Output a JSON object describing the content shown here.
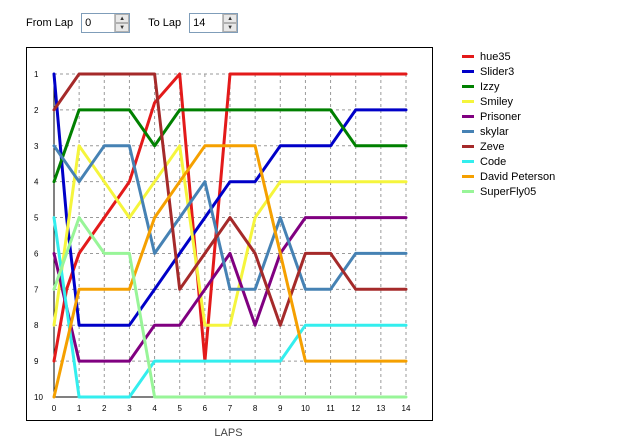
{
  "controls": {
    "from_label": "From Lap",
    "from_value": "0",
    "to_label": "To Lap",
    "to_value": "14"
  },
  "chart_data": {
    "type": "line",
    "xlabel": "LAPS",
    "ylabel": "",
    "x_ticks": [
      "0",
      "1",
      "2",
      "3",
      "4",
      "5",
      "6",
      "7",
      "8",
      "9",
      "10",
      "11",
      "12",
      "13",
      "14"
    ],
    "y_ticks": [
      "1",
      "2",
      "3",
      "4",
      "5",
      "6",
      "7",
      "8",
      "9",
      "10"
    ],
    "xlim": [
      0,
      14
    ],
    "ylim": [
      1,
      10
    ],
    "y_inverted": true,
    "grid": true,
    "legend_position": "right",
    "series": [
      {
        "name": "hue35",
        "color": "#e31a1a",
        "points": [
          [
            0,
            9
          ],
          [
            0.5,
            7
          ],
          [
            1,
            6
          ],
          [
            2,
            5
          ],
          [
            3,
            4
          ],
          [
            4,
            1.8
          ],
          [
            5,
            1
          ],
          [
            6,
            9
          ],
          [
            7,
            1
          ],
          [
            8,
            1
          ],
          [
            9,
            1
          ],
          [
            10,
            1
          ],
          [
            11,
            1
          ],
          [
            12,
            1
          ],
          [
            13,
            1
          ],
          [
            14,
            1
          ]
        ]
      },
      {
        "name": "Slider3",
        "color": "#0000c8",
        "points": [
          [
            0,
            1
          ],
          [
            0.5,
            5
          ],
          [
            1,
            8
          ],
          [
            2,
            8
          ],
          [
            3,
            8
          ],
          [
            4,
            7
          ],
          [
            5,
            6
          ],
          [
            6,
            5
          ],
          [
            7,
            4
          ],
          [
            8,
            4
          ],
          [
            9,
            3
          ],
          [
            10,
            3
          ],
          [
            11,
            3
          ],
          [
            12,
            2
          ],
          [
            13,
            2
          ],
          [
            14,
            2
          ]
        ]
      },
      {
        "name": "Izzy",
        "color": "#008000",
        "points": [
          [
            0,
            4
          ],
          [
            1,
            2
          ],
          [
            2,
            2
          ],
          [
            3,
            2
          ],
          [
            4,
            3
          ],
          [
            5,
            2
          ],
          [
            6,
            2
          ],
          [
            7,
            2
          ],
          [
            8,
            2
          ],
          [
            9,
            2
          ],
          [
            10,
            2
          ],
          [
            11,
            2
          ],
          [
            12,
            3
          ],
          [
            13,
            3
          ],
          [
            14,
            3
          ]
        ]
      },
      {
        "name": "Smiley",
        "color": "#f5f53c",
        "points": [
          [
            0,
            8
          ],
          [
            1,
            3
          ],
          [
            2,
            4
          ],
          [
            3,
            5
          ],
          [
            4,
            4
          ],
          [
            5,
            3
          ],
          [
            6,
            8
          ],
          [
            7,
            8
          ],
          [
            8,
            5
          ],
          [
            9,
            4
          ],
          [
            10,
            4
          ],
          [
            11,
            4
          ],
          [
            12,
            4
          ],
          [
            13,
            4
          ],
          [
            14,
            4
          ]
        ]
      },
      {
        "name": "Prisoner",
        "color": "#800080",
        "points": [
          [
            0,
            6
          ],
          [
            1,
            9
          ],
          [
            2,
            9
          ],
          [
            3,
            9
          ],
          [
            4,
            8
          ],
          [
            5,
            8
          ],
          [
            6,
            7
          ],
          [
            7,
            6
          ],
          [
            8,
            8
          ],
          [
            9,
            6
          ],
          [
            10,
            5
          ],
          [
            11,
            5
          ],
          [
            12,
            5
          ],
          [
            13,
            5
          ],
          [
            14,
            5
          ]
        ]
      },
      {
        "name": "skylar",
        "color": "#4682b4",
        "points": [
          [
            0,
            3
          ],
          [
            1,
            4
          ],
          [
            2,
            3
          ],
          [
            3,
            3
          ],
          [
            4,
            6
          ],
          [
            5,
            5
          ],
          [
            6,
            4
          ],
          [
            7,
            7
          ],
          [
            8,
            7
          ],
          [
            9,
            5
          ],
          [
            10,
            7
          ],
          [
            11,
            7
          ],
          [
            12,
            6
          ],
          [
            13,
            6
          ],
          [
            14,
            6
          ]
        ]
      },
      {
        "name": "Zeve",
        "color": "#a52a2a",
        "points": [
          [
            0,
            2
          ],
          [
            1,
            1
          ],
          [
            2,
            1
          ],
          [
            3,
            1
          ],
          [
            4,
            1
          ],
          [
            5,
            7
          ],
          [
            6,
            6
          ],
          [
            7,
            5
          ],
          [
            8,
            6
          ],
          [
            9,
            8
          ],
          [
            10,
            6
          ],
          [
            11,
            6
          ],
          [
            12,
            7
          ],
          [
            13,
            7
          ],
          [
            14,
            7
          ]
        ]
      },
      {
        "name": "Code",
        "color": "#33eeee",
        "points": [
          [
            0,
            5
          ],
          [
            1,
            10
          ],
          [
            2,
            10
          ],
          [
            3,
            10
          ],
          [
            4,
            9
          ],
          [
            5,
            9
          ],
          [
            6,
            9
          ],
          [
            7,
            9
          ],
          [
            8,
            9
          ],
          [
            9,
            9
          ],
          [
            10,
            8
          ],
          [
            11,
            8
          ],
          [
            12,
            8
          ],
          [
            13,
            8
          ],
          [
            14,
            8
          ]
        ]
      },
      {
        "name": "David Peterson",
        "color": "#f5a000",
        "points": [
          [
            0,
            10
          ],
          [
            1,
            7
          ],
          [
            2,
            7
          ],
          [
            3,
            7
          ],
          [
            4,
            5
          ],
          [
            5,
            4
          ],
          [
            6,
            3
          ],
          [
            7,
            3
          ],
          [
            8,
            3
          ],
          [
            9,
            6
          ],
          [
            10,
            9
          ],
          [
            11,
            9
          ],
          [
            12,
            9
          ],
          [
            13,
            9
          ],
          [
            14,
            9
          ]
        ]
      },
      {
        "name": "SuperFly05",
        "color": "#98f598",
        "points": [
          [
            0,
            7
          ],
          [
            1,
            5
          ],
          [
            2,
            6
          ],
          [
            3,
            6
          ],
          [
            4,
            10
          ],
          [
            5,
            10
          ],
          [
            6,
            10
          ],
          [
            7,
            10
          ],
          [
            8,
            10
          ],
          [
            9,
            10
          ],
          [
            10,
            10
          ],
          [
            11,
            10
          ],
          [
            12,
            10
          ],
          [
            13,
            10
          ],
          [
            14,
            10
          ]
        ]
      }
    ]
  }
}
